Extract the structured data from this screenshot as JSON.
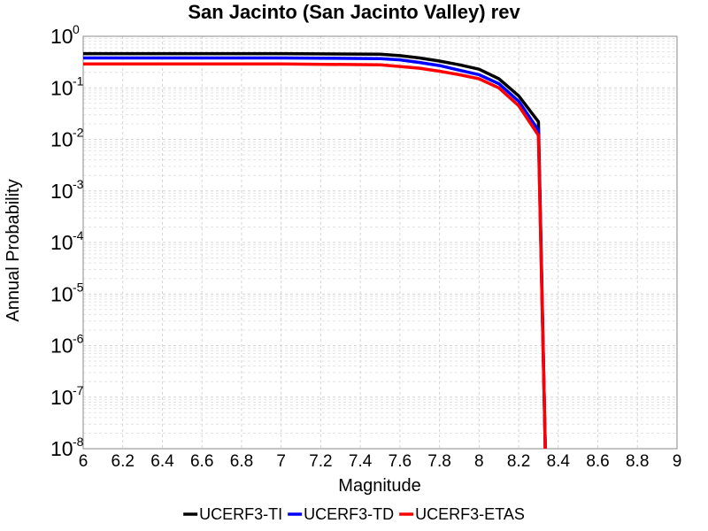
{
  "chart_data": {
    "type": "line",
    "title": "San Jacinto (San Jacinto Valley) rev",
    "xlabel": "Magnitude",
    "ylabel": "Annual Probability",
    "xlim": [
      6,
      9
    ],
    "ylim": [
      1e-08,
      1
    ],
    "yscale": "log",
    "grid": true,
    "legend_position": "bottom",
    "x_ticks": [
      "6",
      "6.2",
      "6.4",
      "6.6",
      "6.8",
      "7",
      "7.2",
      "7.4",
      "7.6",
      "7.8",
      "8",
      "8.2",
      "8.4",
      "8.6",
      "8.8",
      "9"
    ],
    "y_tick_base": "10",
    "y_tick_exponents": [
      "0",
      "-1",
      "-2",
      "-3",
      "-4",
      "-5",
      "-6",
      "-7",
      "-8"
    ],
    "series": [
      {
        "name": "UCERF3-TI",
        "color": "#000000",
        "x": [
          6.0,
          6.5,
          7.0,
          7.5,
          7.6,
          7.7,
          7.8,
          7.9,
          8.0,
          8.1,
          8.2,
          8.3,
          8.34
        ],
        "y": [
          0.46,
          0.46,
          0.46,
          0.45,
          0.42,
          0.38,
          0.33,
          0.28,
          0.23,
          0.15,
          0.07,
          0.022,
          1e-09
        ]
      },
      {
        "name": "UCERF3-TD",
        "color": "#0000ff",
        "x": [
          6.0,
          6.5,
          7.0,
          7.5,
          7.6,
          7.7,
          7.8,
          7.9,
          8.0,
          8.1,
          8.2,
          8.3,
          8.34
        ],
        "y": [
          0.38,
          0.38,
          0.38,
          0.37,
          0.35,
          0.31,
          0.27,
          0.22,
          0.18,
          0.12,
          0.055,
          0.015,
          1e-09
        ]
      },
      {
        "name": "UCERF3-ETAS",
        "color": "#ff0000",
        "x": [
          6.0,
          6.5,
          7.0,
          7.5,
          7.6,
          7.7,
          7.8,
          7.9,
          8.0,
          8.1,
          8.2,
          8.3,
          8.34
        ],
        "y": [
          0.29,
          0.29,
          0.29,
          0.28,
          0.26,
          0.24,
          0.21,
          0.18,
          0.15,
          0.1,
          0.045,
          0.012,
          1e-09
        ]
      }
    ]
  }
}
